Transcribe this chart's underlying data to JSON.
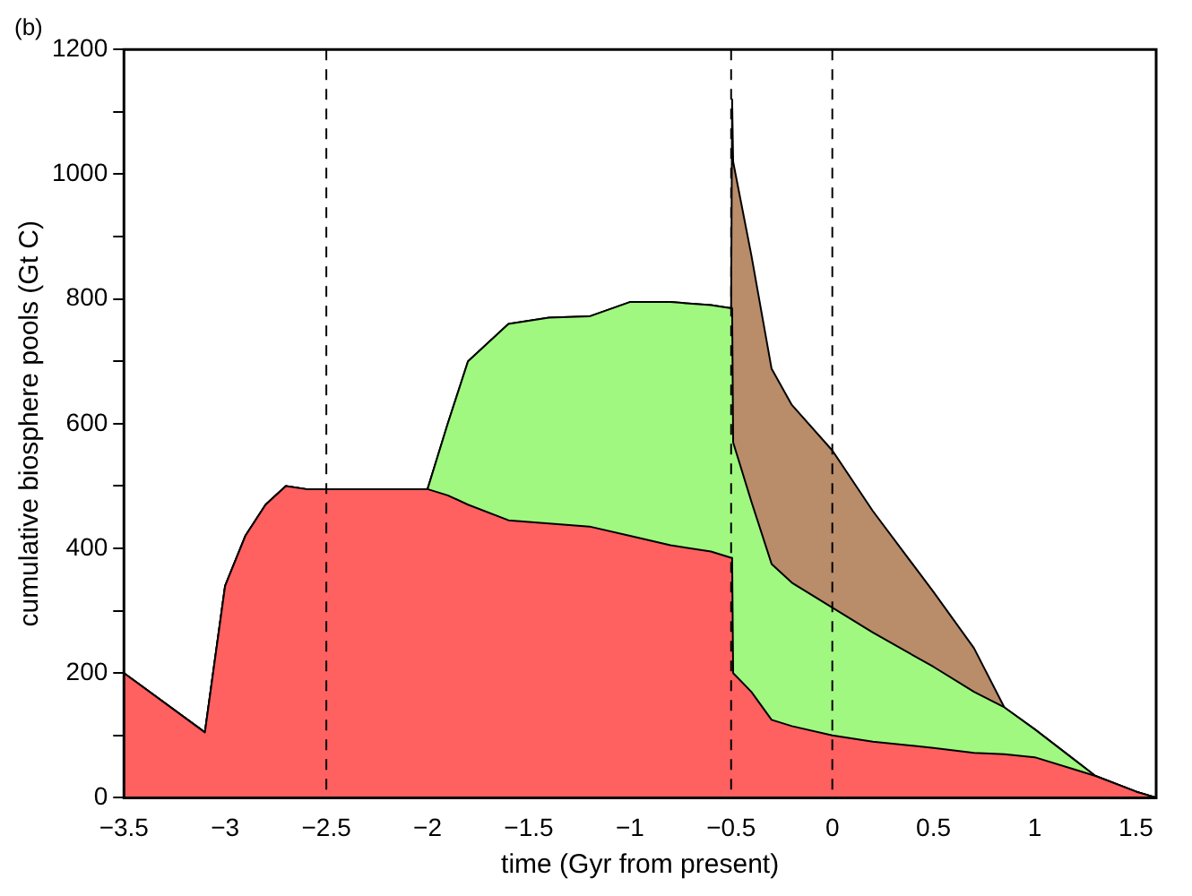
{
  "chart_data": {
    "type": "area",
    "title": "(b)",
    "xlabel": "time (Gyr from present)",
    "ylabel": "cumulative biosphere pools (Gt C)",
    "stacked": true,
    "grid": false,
    "legend": false,
    "marker": "none",
    "x": [
      -3.5,
      -3.1,
      -3.0,
      -2.9,
      -2.8,
      -2.7,
      -2.6,
      -2.0,
      -1.9,
      -1.8,
      -1.6,
      -1.4,
      -1.2,
      -1.0,
      -0.8,
      -0.6,
      -0.5,
      -0.495,
      -0.49,
      -0.4,
      -0.3,
      -0.2,
      0,
      0.2,
      0.5,
      0.7,
      0.85,
      1.0,
      1.2,
      1.3,
      1.5,
      1.6
    ],
    "series": [
      {
        "color": "#ff6060",
        "values": [
          200,
          105,
          340,
          420,
          470,
          500,
          495,
          495,
          485,
          470,
          445,
          440,
          435,
          420,
          405,
          395,
          385,
          385,
          200,
          170,
          125,
          115,
          100,
          90,
          80,
          72,
          70,
          65,
          45,
          35,
          10,
          0
        ]
      },
      {
        "color": "#a0f880",
        "values": [
          0,
          0,
          0,
          0,
          0,
          0,
          0,
          0,
          115,
          230,
          315,
          330,
          337,
          375,
          390,
          395,
          400,
          400,
          370,
          305,
          250,
          230,
          205,
          175,
          130,
          98,
          75,
          45,
          15,
          0,
          0,
          0
        ]
      },
      {
        "color": "#b98c6a",
        "values": [
          0,
          0,
          0,
          0,
          0,
          0,
          0,
          0,
          0,
          0,
          0,
          0,
          0,
          0,
          0,
          0,
          0,
          335,
          450,
          395,
          313,
          285,
          252,
          195,
          120,
          70,
          0,
          0,
          0,
          0,
          0,
          0
        ]
      }
    ],
    "xlim": [
      -3.5,
      1.6
    ],
    "xticks": [
      {
        "value": -3.5,
        "label": "−3.5"
      },
      {
        "value": -3,
        "label": "−3"
      },
      {
        "value": -2.5,
        "label": "−2.5"
      },
      {
        "value": -2,
        "label": "−2"
      },
      {
        "value": -1.5,
        "label": "−1.5"
      },
      {
        "value": -1,
        "label": "−1"
      },
      {
        "value": -0.5,
        "label": "−0.5"
      },
      0,
      0.5,
      1,
      1.5
    ],
    "ylim": [
      0,
      1200
    ],
    "yticks": [
      0,
      {
        "value": 100,
        "label": null
      },
      200,
      {
        "value": 300,
        "label": null
      },
      400,
      {
        "value": 500,
        "label": null
      },
      600,
      {
        "value": 700,
        "label": null
      },
      800,
      {
        "value": 900,
        "label": null
      },
      1000,
      {
        "value": 1100,
        "label": null
      },
      1200
    ],
    "ref_lines": [
      {
        "axis": "x",
        "value": -2.5,
        "color": "#000000",
        "line_style": "dashed"
      },
      {
        "axis": "x",
        "value": -0.5,
        "color": "#000000",
        "line_style": "dashed"
      },
      {
        "axis": "x",
        "value": 0,
        "color": "#000000",
        "line_style": "dashed"
      }
    ]
  }
}
